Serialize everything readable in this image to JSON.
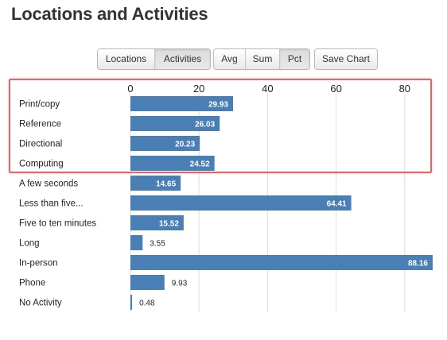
{
  "page": {
    "title": "Locations and Activities"
  },
  "toolbar": {
    "groups": [
      {
        "name": "view",
        "buttons": [
          {
            "label": "Locations",
            "active": false
          },
          {
            "label": "Activities",
            "active": true
          }
        ]
      },
      {
        "name": "mode",
        "buttons": [
          {
            "label": "Avg",
            "active": false
          },
          {
            "label": "Sum",
            "active": false
          },
          {
            "label": "Pct",
            "active": true
          }
        ]
      },
      {
        "name": "export",
        "buttons": [
          {
            "label": "Save Chart",
            "active": false
          }
        ]
      }
    ]
  },
  "chart_data": {
    "type": "bar",
    "orientation": "horizontal",
    "categories": [
      "Print/copy",
      "Reference",
      "Directional",
      "Computing",
      "A few seconds",
      "Less than five...",
      "Five to ten minutes",
      "Long",
      "In-person",
      "Phone",
      "No Activity"
    ],
    "values": [
      29.93,
      26.03,
      20.23,
      24.52,
      14.65,
      64.41,
      15.52,
      3.55,
      88.16,
      9.93,
      0.48
    ],
    "data_labels": [
      "29.93",
      "26.03",
      "20.23",
      "24.52",
      "14.65",
      "64.41",
      "15.52",
      "3.55",
      "88.16",
      "9.93",
      "0.48"
    ],
    "x_ticks": [
      "0",
      "20",
      "40",
      "60",
      "80"
    ],
    "xlim": [
      0,
      90
    ],
    "grid": true,
    "bar_color": "#4a7fb5",
    "highlighted_categories": [
      "Print/copy",
      "Reference",
      "Directional",
      "Computing"
    ],
    "highlight_color": "#e36464"
  }
}
